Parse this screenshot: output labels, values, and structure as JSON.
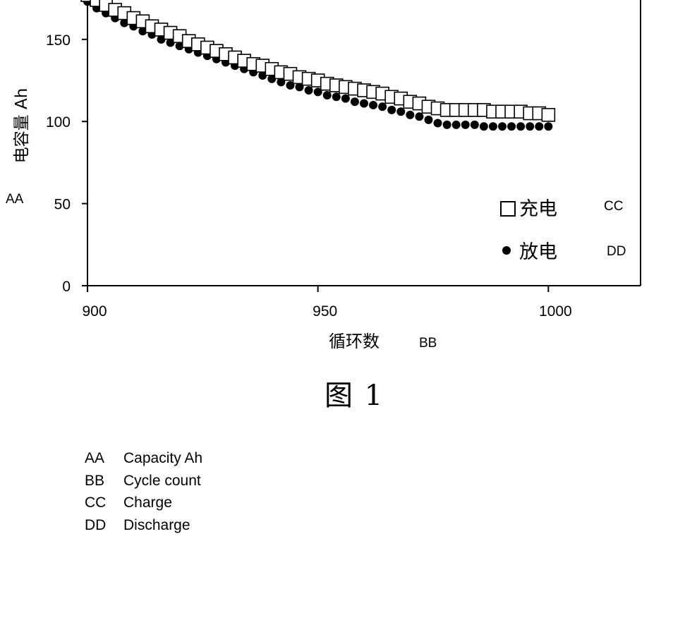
{
  "chart_data": {
    "type": "scatter",
    "xlabel": "循环数",
    "xlabel_code": "BB",
    "ylabel": "电容量 Ah",
    "ylabel_code": "AA",
    "xlim": [
      900,
      1020
    ],
    "ylim": [
      0,
      180
    ],
    "x_ticks": [
      900,
      950,
      1000
    ],
    "y_ticks": [
      0,
      50,
      100,
      150
    ],
    "legend_position": "lower-right",
    "series": [
      {
        "name": "充电",
        "code": "CC",
        "marker": "open-square",
        "color": "#000000",
        "points": [
          [
            900,
            177
          ],
          [
            902,
            174
          ],
          [
            904,
            171
          ],
          [
            906,
            168
          ],
          [
            908,
            166
          ],
          [
            910,
            163
          ],
          [
            912,
            161
          ],
          [
            914,
            158
          ],
          [
            916,
            156
          ],
          [
            918,
            154
          ],
          [
            920,
            152
          ],
          [
            922,
            149
          ],
          [
            924,
            147
          ],
          [
            926,
            145
          ],
          [
            928,
            143
          ],
          [
            930,
            141
          ],
          [
            932,
            139
          ],
          [
            934,
            137
          ],
          [
            936,
            135
          ],
          [
            938,
            134
          ],
          [
            940,
            132
          ],
          [
            942,
            130
          ],
          [
            944,
            129
          ],
          [
            946,
            127
          ],
          [
            948,
            126
          ],
          [
            950,
            125
          ],
          [
            952,
            123
          ],
          [
            954,
            122
          ],
          [
            956,
            121
          ],
          [
            958,
            120
          ],
          [
            960,
            119
          ],
          [
            962,
            118
          ],
          [
            964,
            117
          ],
          [
            966,
            115
          ],
          [
            968,
            114
          ],
          [
            970,
            112
          ],
          [
            972,
            111
          ],
          [
            974,
            109
          ],
          [
            976,
            108
          ],
          [
            978,
            107
          ],
          [
            980,
            107
          ],
          [
            982,
            107
          ],
          [
            984,
            107
          ],
          [
            986,
            107
          ],
          [
            988,
            106
          ],
          [
            990,
            106
          ],
          [
            992,
            106
          ],
          [
            994,
            106
          ],
          [
            996,
            105
          ],
          [
            998,
            105
          ],
          [
            1000,
            104
          ]
        ]
      },
      {
        "name": "放电",
        "code": "DD",
        "marker": "filled-circle",
        "color": "#000000",
        "points": [
          [
            900,
            173
          ],
          [
            902,
            169
          ],
          [
            904,
            166
          ],
          [
            906,
            163
          ],
          [
            908,
            160
          ],
          [
            910,
            158
          ],
          [
            912,
            155
          ],
          [
            914,
            153
          ],
          [
            916,
            150
          ],
          [
            918,
            148
          ],
          [
            920,
            146
          ],
          [
            922,
            144
          ],
          [
            924,
            142
          ],
          [
            926,
            140
          ],
          [
            928,
            138
          ],
          [
            930,
            136
          ],
          [
            932,
            134
          ],
          [
            934,
            132
          ],
          [
            936,
            130
          ],
          [
            938,
            128
          ],
          [
            940,
            126
          ],
          [
            942,
            124
          ],
          [
            944,
            122
          ],
          [
            946,
            121
          ],
          [
            948,
            119
          ],
          [
            950,
            118
          ],
          [
            952,
            116
          ],
          [
            954,
            115
          ],
          [
            956,
            114
          ],
          [
            958,
            112
          ],
          [
            960,
            111
          ],
          [
            962,
            110
          ],
          [
            964,
            109
          ],
          [
            966,
            107
          ],
          [
            968,
            106
          ],
          [
            970,
            104
          ],
          [
            972,
            103
          ],
          [
            974,
            101
          ],
          [
            976,
            99
          ],
          [
            978,
            98
          ],
          [
            980,
            98
          ],
          [
            982,
            98
          ],
          [
            984,
            98
          ],
          [
            986,
            97
          ],
          [
            988,
            97
          ],
          [
            990,
            97
          ],
          [
            992,
            97
          ],
          [
            994,
            97
          ],
          [
            996,
            97
          ],
          [
            998,
            97
          ],
          [
            1000,
            97
          ]
        ]
      }
    ]
  },
  "figure_caption": "图  1",
  "notes": [
    {
      "code": "AA",
      "text": "Capacity Ah"
    },
    {
      "code": "BB",
      "text": "Cycle count"
    },
    {
      "code": "CC",
      "text": "Charge"
    },
    {
      "code": "DD",
      "text": "Discharge"
    }
  ]
}
